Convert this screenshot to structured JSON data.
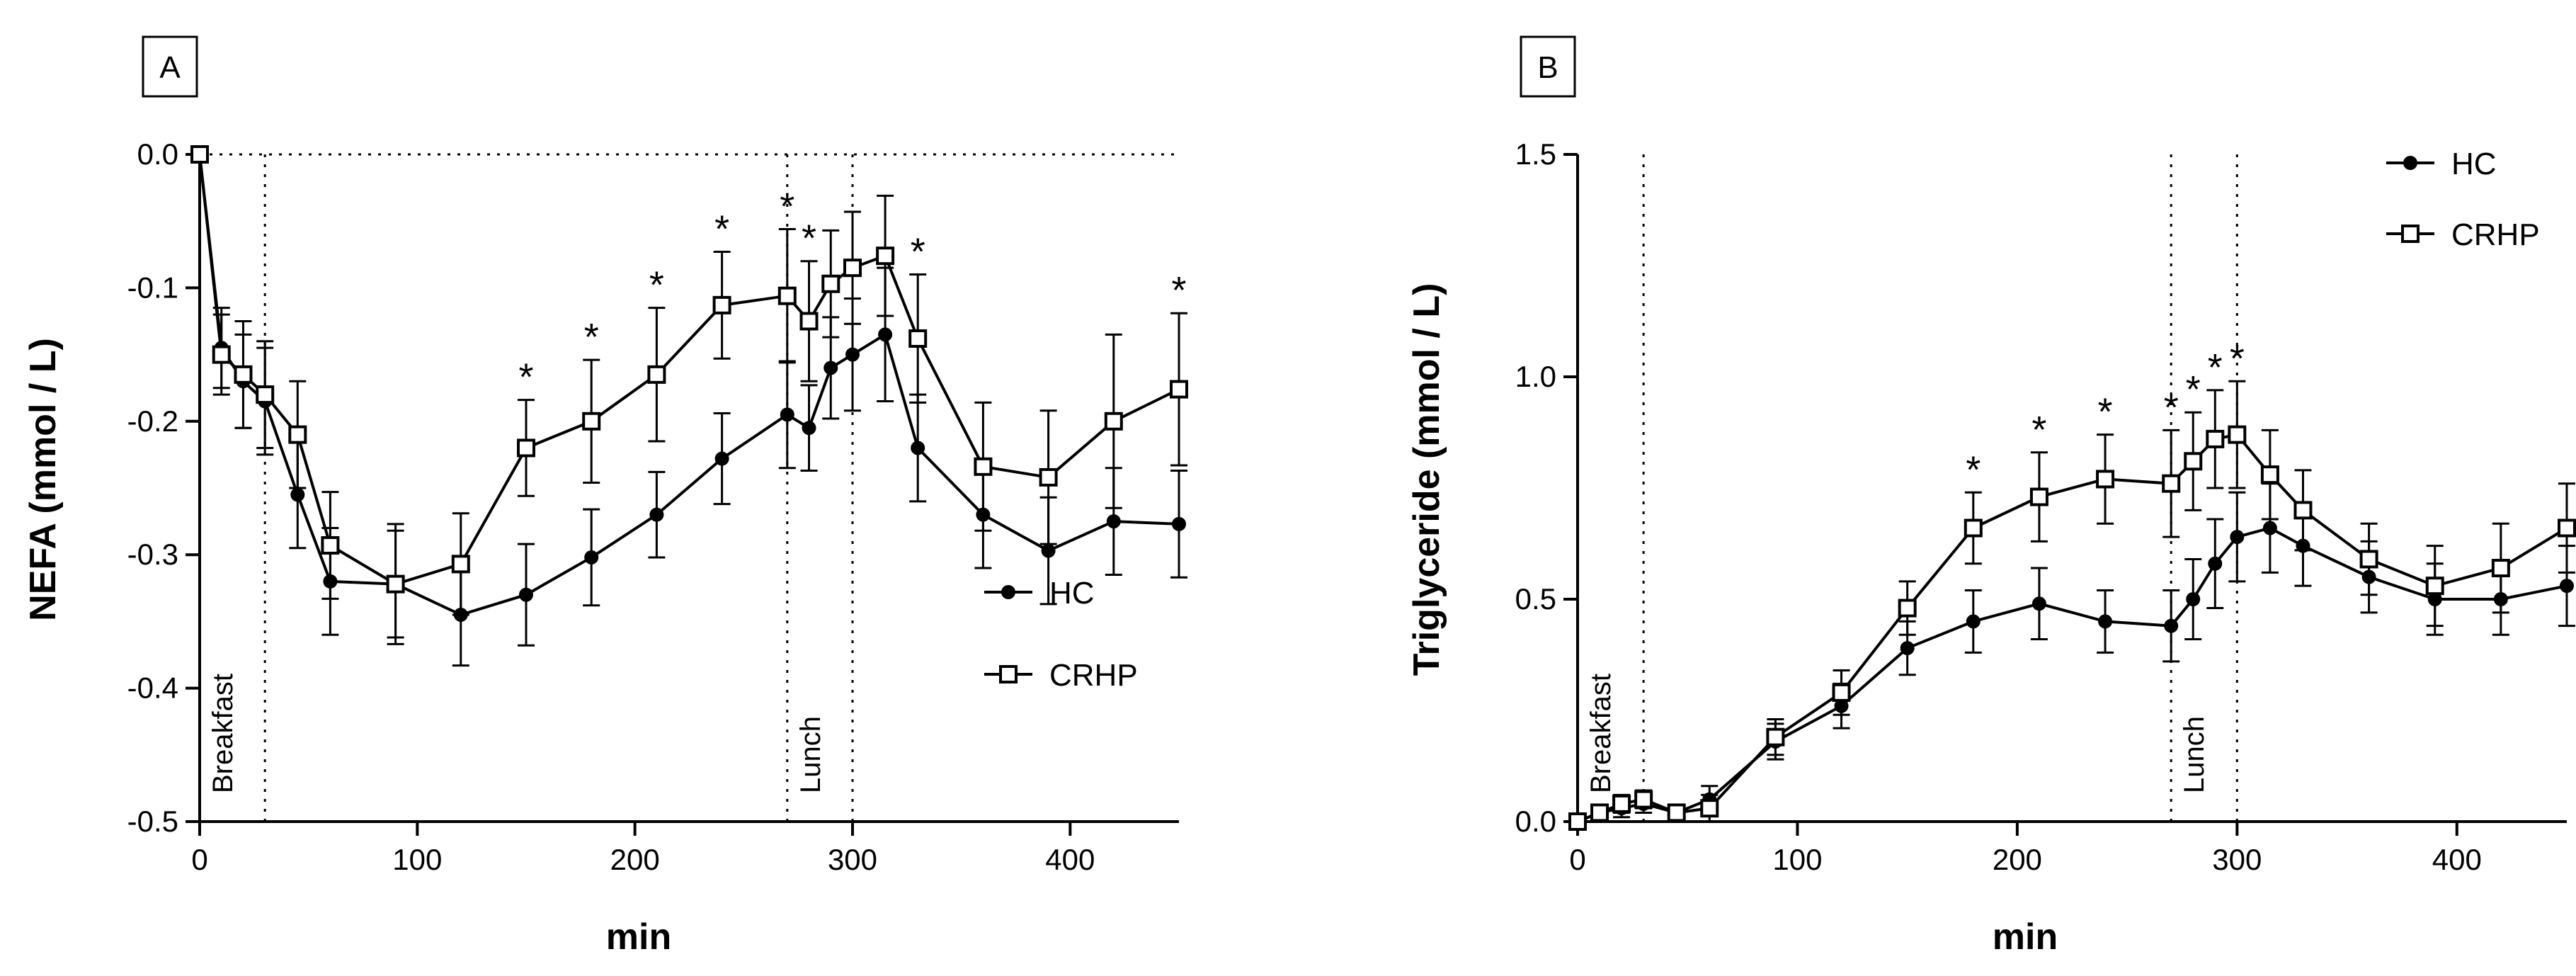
{
  "chart_data": [
    {
      "type": "line",
      "panel_label": "A",
      "xlabel": "min",
      "ylabel": "NEFA (mmol / L)",
      "xlim": [
        0,
        450
      ],
      "ylim": [
        -0.5,
        0.0
      ],
      "xticks": [
        0,
        100,
        200,
        300,
        400
      ],
      "yticks": [
        0.0,
        -0.1,
        -0.2,
        -0.3,
        -0.4,
        -0.5
      ],
      "ytick_labels": [
        "0.0",
        "-0.1",
        "-0.2",
        "-0.3",
        "-0.4",
        "-0.5"
      ],
      "legend": [
        "HC",
        "CRHP"
      ],
      "legend_position": "bottom-right",
      "meal_lines": [
        0,
        30,
        270,
        300
      ],
      "meals": [
        {
          "label": "Breakfast",
          "at": 0
        },
        {
          "label": "Lunch",
          "at": 270
        }
      ],
      "zero_line": true,
      "series": [
        {
          "name": "HC",
          "marker": "filled-circle",
          "x": [
            0,
            10,
            20,
            30,
            45,
            60,
            90,
            120,
            150,
            180,
            210,
            240,
            270,
            280,
            290,
            300,
            315,
            330,
            360,
            390,
            420,
            450
          ],
          "y": [
            0.0,
            -0.145,
            -0.17,
            -0.185,
            -0.255,
            -0.32,
            -0.322,
            -0.345,
            -0.33,
            -0.302,
            -0.27,
            -0.228,
            -0.195,
            -0.205,
            -0.16,
            -0.15,
            -0.135,
            -0.22,
            -0.27,
            -0.297,
            -0.275,
            -0.277
          ],
          "err": [
            0,
            0.03,
            0.035,
            0.04,
            0.04,
            0.04,
            0.04,
            0.038,
            0.038,
            0.036,
            0.032,
            0.034,
            0.04,
            0.032,
            0.038,
            0.042,
            0.05,
            0.04,
            0.04,
            0.04,
            0.04,
            0.04
          ]
        },
        {
          "name": "CRHP",
          "marker": "open-square",
          "x": [
            0,
            10,
            20,
            30,
            45,
            60,
            90,
            120,
            150,
            180,
            210,
            240,
            270,
            280,
            290,
            300,
            315,
            330,
            360,
            390,
            420,
            450
          ],
          "y": [
            0.0,
            -0.15,
            -0.165,
            -0.18,
            -0.21,
            -0.293,
            -0.322,
            -0.307,
            -0.22,
            -0.2,
            -0.165,
            -0.113,
            -0.106,
            -0.125,
            -0.097,
            -0.085,
            -0.076,
            -0.138,
            -0.234,
            -0.242,
            -0.2,
            -0.176
          ],
          "err": [
            0,
            0.03,
            0.04,
            0.04,
            0.04,
            0.04,
            0.045,
            0.038,
            0.036,
            0.046,
            0.05,
            0.04,
            0.05,
            0.045,
            0.04,
            0.042,
            0.045,
            0.048,
            0.048,
            0.05,
            0.065,
            0.057
          ]
        }
      ],
      "significance": {
        "mark": "*",
        "x": [
          150,
          180,
          210,
          240,
          270,
          280,
          330,
          450
        ]
      }
    },
    {
      "type": "line",
      "panel_label": "B",
      "xlabel": "min",
      "ylabel": "Triglyceride (mmol / L)",
      "xlim": [
        0,
        450
      ],
      "ylim": [
        0.0,
        1.5
      ],
      "xticks": [
        0,
        100,
        200,
        300,
        400
      ],
      "yticks": [
        0.0,
        0.5,
        1.0,
        1.5
      ],
      "ytick_labels": [
        "0.0",
        "0.5",
        "1.0",
        "1.5"
      ],
      "legend": [
        "HC",
        "CRHP"
      ],
      "legend_position": "top-right",
      "meal_lines": [
        0,
        30,
        270,
        300
      ],
      "meals": [
        {
          "label": "Breakfast",
          "at": 0
        },
        {
          "label": "Lunch",
          "at": 270
        }
      ],
      "series": [
        {
          "name": "HC",
          "marker": "filled-circle",
          "x": [
            0,
            10,
            20,
            30,
            45,
            60,
            90,
            120,
            150,
            180,
            210,
            240,
            270,
            280,
            290,
            300,
            315,
            330,
            360,
            390,
            420,
            450
          ],
          "y": [
            0.0,
            0.02,
            0.03,
            0.04,
            0.02,
            0.05,
            0.18,
            0.26,
            0.39,
            0.45,
            0.49,
            0.45,
            0.44,
            0.5,
            0.58,
            0.64,
            0.66,
            0.62,
            0.55,
            0.5,
            0.5,
            0.53
          ],
          "err": [
            0,
            0.01,
            0.02,
            0.02,
            0.01,
            0.03,
            0.04,
            0.05,
            0.06,
            0.07,
            0.08,
            0.07,
            0.08,
            0.09,
            0.1,
            0.1,
            0.1,
            0.09,
            0.08,
            0.08,
            0.08,
            0.09
          ]
        },
        {
          "name": "CRHP",
          "marker": "open-square",
          "x": [
            0,
            10,
            20,
            30,
            45,
            60,
            90,
            120,
            150,
            180,
            210,
            240,
            270,
            280,
            290,
            300,
            315,
            330,
            360,
            390,
            420,
            450
          ],
          "y": [
            0.0,
            0.02,
            0.04,
            0.05,
            0.02,
            0.03,
            0.19,
            0.29,
            0.48,
            0.66,
            0.73,
            0.77,
            0.76,
            0.81,
            0.86,
            0.87,
            0.78,
            0.7,
            0.59,
            0.53,
            0.57,
            0.66
          ],
          "err": [
            0,
            0.01,
            0.02,
            0.02,
            0.01,
            0.03,
            0.04,
            0.05,
            0.06,
            0.08,
            0.1,
            0.1,
            0.12,
            0.11,
            0.11,
            0.12,
            0.1,
            0.09,
            0.08,
            0.09,
            0.1,
            0.1
          ]
        }
      ],
      "significance": {
        "mark": "*",
        "x": [
          180,
          210,
          240,
          270,
          280,
          290,
          300
        ]
      }
    }
  ]
}
